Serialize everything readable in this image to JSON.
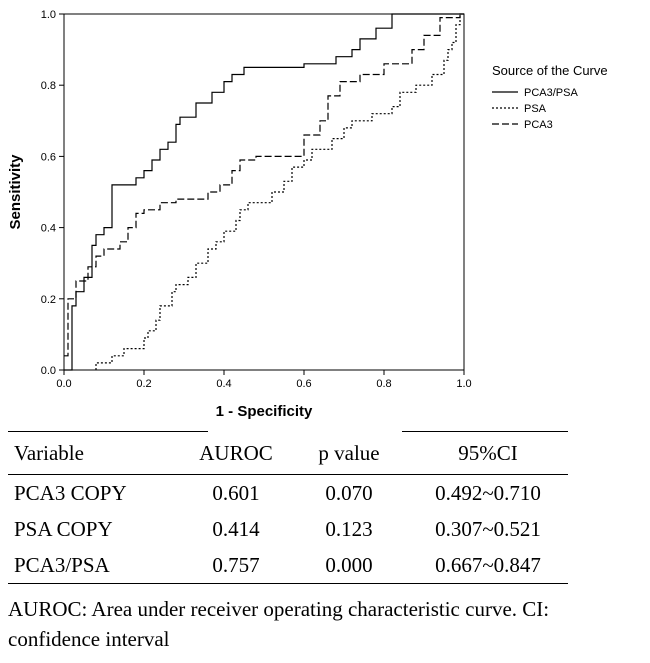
{
  "chart_data": {
    "type": "line",
    "xlabel": "1 - Specificity",
    "ylabel": "Sensitivity",
    "xlim": [
      0.0,
      1.0
    ],
    "ylim": [
      0.0,
      1.0
    ],
    "xticks": [
      "0.0",
      "0.2",
      "0.4",
      "0.6",
      "0.8",
      "1.0"
    ],
    "yticks": [
      "0.0",
      "0.2",
      "0.4",
      "0.6",
      "0.8",
      "1.0"
    ],
    "grid": false,
    "legend_title": "Source of the Curve",
    "legend_position": "right",
    "series": [
      {
        "name": "PCA3/PSA",
        "dash": "solid",
        "points": [
          [
            0.0,
            0.0
          ],
          [
            0.02,
            0.0
          ],
          [
            0.02,
            0.18
          ],
          [
            0.03,
            0.18
          ],
          [
            0.03,
            0.22
          ],
          [
            0.05,
            0.22
          ],
          [
            0.05,
            0.26
          ],
          [
            0.07,
            0.26
          ],
          [
            0.07,
            0.35
          ],
          [
            0.08,
            0.35
          ],
          [
            0.08,
            0.38
          ],
          [
            0.1,
            0.38
          ],
          [
            0.1,
            0.4
          ],
          [
            0.12,
            0.4
          ],
          [
            0.12,
            0.52
          ],
          [
            0.18,
            0.52
          ],
          [
            0.18,
            0.54
          ],
          [
            0.2,
            0.54
          ],
          [
            0.2,
            0.56
          ],
          [
            0.22,
            0.56
          ],
          [
            0.22,
            0.59
          ],
          [
            0.24,
            0.59
          ],
          [
            0.24,
            0.62
          ],
          [
            0.26,
            0.62
          ],
          [
            0.26,
            0.64
          ],
          [
            0.28,
            0.64
          ],
          [
            0.28,
            0.69
          ],
          [
            0.29,
            0.69
          ],
          [
            0.29,
            0.71
          ],
          [
            0.33,
            0.71
          ],
          [
            0.33,
            0.75
          ],
          [
            0.37,
            0.75
          ],
          [
            0.37,
            0.78
          ],
          [
            0.4,
            0.78
          ],
          [
            0.4,
            0.81
          ],
          [
            0.42,
            0.81
          ],
          [
            0.42,
            0.83
          ],
          [
            0.45,
            0.83
          ],
          [
            0.45,
            0.85
          ],
          [
            0.6,
            0.85
          ],
          [
            0.6,
            0.86
          ],
          [
            0.68,
            0.86
          ],
          [
            0.68,
            0.88
          ],
          [
            0.72,
            0.88
          ],
          [
            0.72,
            0.9
          ],
          [
            0.74,
            0.9
          ],
          [
            0.74,
            0.93
          ],
          [
            0.78,
            0.93
          ],
          [
            0.78,
            0.96
          ],
          [
            0.82,
            0.96
          ],
          [
            0.82,
            1.0
          ],
          [
            1.0,
            1.0
          ]
        ]
      },
      {
        "name": "PSA",
        "dash": "dotted",
        "points": [
          [
            0.08,
            0.0
          ],
          [
            0.08,
            0.02
          ],
          [
            0.12,
            0.02
          ],
          [
            0.12,
            0.04
          ],
          [
            0.15,
            0.04
          ],
          [
            0.15,
            0.06
          ],
          [
            0.2,
            0.06
          ],
          [
            0.2,
            0.09
          ],
          [
            0.21,
            0.09
          ],
          [
            0.21,
            0.11
          ],
          [
            0.23,
            0.11
          ],
          [
            0.23,
            0.14
          ],
          [
            0.24,
            0.14
          ],
          [
            0.24,
            0.18
          ],
          [
            0.27,
            0.18
          ],
          [
            0.27,
            0.22
          ],
          [
            0.28,
            0.22
          ],
          [
            0.28,
            0.24
          ],
          [
            0.31,
            0.24
          ],
          [
            0.31,
            0.26
          ],
          [
            0.33,
            0.26
          ],
          [
            0.33,
            0.3
          ],
          [
            0.36,
            0.3
          ],
          [
            0.36,
            0.34
          ],
          [
            0.38,
            0.34
          ],
          [
            0.38,
            0.36
          ],
          [
            0.4,
            0.36
          ],
          [
            0.4,
            0.39
          ],
          [
            0.43,
            0.39
          ],
          [
            0.43,
            0.42
          ],
          [
            0.44,
            0.42
          ],
          [
            0.44,
            0.45
          ],
          [
            0.46,
            0.45
          ],
          [
            0.46,
            0.47
          ],
          [
            0.52,
            0.47
          ],
          [
            0.52,
            0.5
          ],
          [
            0.55,
            0.5
          ],
          [
            0.55,
            0.53
          ],
          [
            0.57,
            0.53
          ],
          [
            0.57,
            0.57
          ],
          [
            0.6,
            0.57
          ],
          [
            0.6,
            0.59
          ],
          [
            0.62,
            0.59
          ],
          [
            0.62,
            0.62
          ],
          [
            0.67,
            0.62
          ],
          [
            0.67,
            0.65
          ],
          [
            0.7,
            0.65
          ],
          [
            0.7,
            0.68
          ],
          [
            0.72,
            0.68
          ],
          [
            0.72,
            0.7
          ],
          [
            0.77,
            0.7
          ],
          [
            0.77,
            0.72
          ],
          [
            0.82,
            0.72
          ],
          [
            0.82,
            0.74
          ],
          [
            0.84,
            0.74
          ],
          [
            0.84,
            0.78
          ],
          [
            0.88,
            0.78
          ],
          [
            0.88,
            0.8
          ],
          [
            0.92,
            0.8
          ],
          [
            0.92,
            0.83
          ],
          [
            0.95,
            0.83
          ],
          [
            0.95,
            0.87
          ],
          [
            0.96,
            0.87
          ],
          [
            0.96,
            0.9
          ],
          [
            0.97,
            0.9
          ],
          [
            0.97,
            0.92
          ],
          [
            0.98,
            0.92
          ],
          [
            0.98,
            0.97
          ],
          [
            0.99,
            0.97
          ],
          [
            0.99,
            1.0
          ],
          [
            1.0,
            1.0
          ]
        ]
      },
      {
        "name": "PCA3",
        "dash": "dashed",
        "points": [
          [
            0.0,
            0.04
          ],
          [
            0.01,
            0.04
          ],
          [
            0.01,
            0.2
          ],
          [
            0.03,
            0.2
          ],
          [
            0.03,
            0.25
          ],
          [
            0.06,
            0.25
          ],
          [
            0.06,
            0.29
          ],
          [
            0.08,
            0.29
          ],
          [
            0.08,
            0.32
          ],
          [
            0.1,
            0.32
          ],
          [
            0.1,
            0.34
          ],
          [
            0.14,
            0.34
          ],
          [
            0.14,
            0.36
          ],
          [
            0.16,
            0.36
          ],
          [
            0.16,
            0.4
          ],
          [
            0.18,
            0.4
          ],
          [
            0.18,
            0.44
          ],
          [
            0.2,
            0.44
          ],
          [
            0.2,
            0.45
          ],
          [
            0.24,
            0.45
          ],
          [
            0.24,
            0.47
          ],
          [
            0.28,
            0.47
          ],
          [
            0.28,
            0.48
          ],
          [
            0.36,
            0.48
          ],
          [
            0.36,
            0.5
          ],
          [
            0.39,
            0.5
          ],
          [
            0.39,
            0.52
          ],
          [
            0.42,
            0.52
          ],
          [
            0.42,
            0.56
          ],
          [
            0.44,
            0.56
          ],
          [
            0.44,
            0.59
          ],
          [
            0.48,
            0.59
          ],
          [
            0.48,
            0.6
          ],
          [
            0.6,
            0.6
          ],
          [
            0.6,
            0.66
          ],
          [
            0.64,
            0.66
          ],
          [
            0.64,
            0.7
          ],
          [
            0.66,
            0.7
          ],
          [
            0.66,
            0.77
          ],
          [
            0.69,
            0.77
          ],
          [
            0.69,
            0.81
          ],
          [
            0.74,
            0.81
          ],
          [
            0.74,
            0.83
          ],
          [
            0.8,
            0.83
          ],
          [
            0.8,
            0.86
          ],
          [
            0.87,
            0.86
          ],
          [
            0.87,
            0.9
          ],
          [
            0.9,
            0.9
          ],
          [
            0.9,
            0.94
          ],
          [
            0.94,
            0.94
          ],
          [
            0.94,
            0.99
          ],
          [
            0.99,
            0.99
          ],
          [
            0.99,
            1.0
          ],
          [
            1.0,
            1.0
          ]
        ]
      }
    ]
  },
  "table": {
    "headers": [
      "Variable",
      "AUROC",
      "p value",
      "95%CI"
    ],
    "rows": [
      [
        "PCA3 COPY",
        "0.601",
        "0.070",
        "0.492~0.710"
      ],
      [
        "PSA COPY",
        "0.414",
        "0.123",
        "0.307~0.521"
      ],
      [
        "PCA3/PSA",
        "0.757",
        "0.000",
        "0.667~0.847"
      ]
    ]
  },
  "footnote": "AUROC: Area under receiver operating characteristic curve. CI: confidence interval"
}
